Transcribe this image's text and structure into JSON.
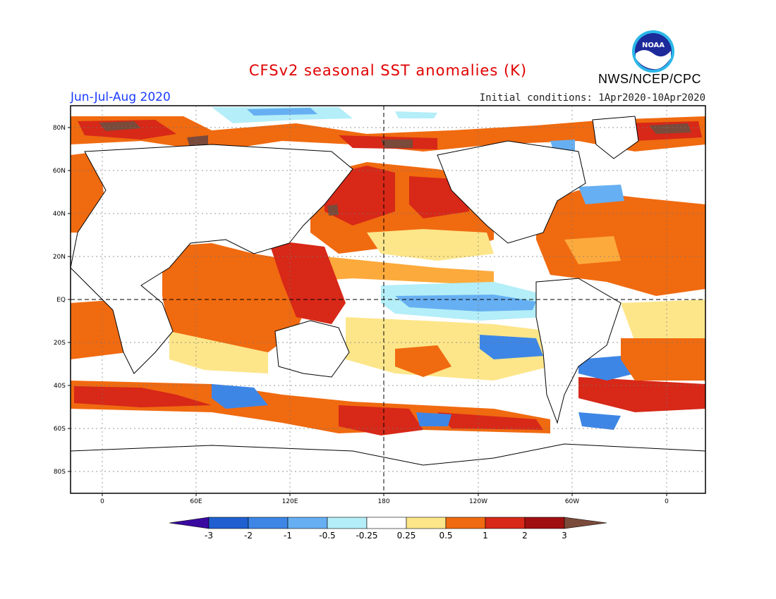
{
  "title": "CFSv2 seasonal SST anomalies (K)",
  "period": "Jun-Jul-Aug 2020",
  "initial_conditions": "Initial conditions: 1Apr2020-10Apr2020",
  "organization": "NWS/NCEP/CPC",
  "logo_text": "NOAA",
  "lat_labels": [
    "80N",
    "60N",
    "40N",
    "20N",
    "EQ",
    "20S",
    "40S",
    "60S",
    "80S"
  ],
  "lon_labels": [
    "0",
    "60E",
    "120E",
    "180",
    "120W",
    "60W",
    "0"
  ],
  "colorbar": {
    "labels": [
      "-3",
      "-2",
      "-1",
      "-0.5",
      "-0.25",
      "0.25",
      "0.5",
      "1",
      "2",
      "3"
    ],
    "colors": [
      "#3a0aa0",
      "#1f5fd0",
      "#3d86e6",
      "#66aff2",
      "#b4eef8",
      "#ffffff",
      "#fde68a",
      "#fdaa3c",
      "#f06a10",
      "#d72818",
      "#a11010",
      "#7a4a3a"
    ]
  },
  "anomaly_classes": {
    "strong_warm": "#a11010",
    "warm2": "#d72818",
    "warm1": "#f06a10",
    "warm05": "#fdaa3c",
    "warm025": "#fde68a",
    "cool025": "#b4eef8",
    "cool05": "#66aff2",
    "cool1": "#3d86e6",
    "extreme": "#7a4a3a"
  }
}
